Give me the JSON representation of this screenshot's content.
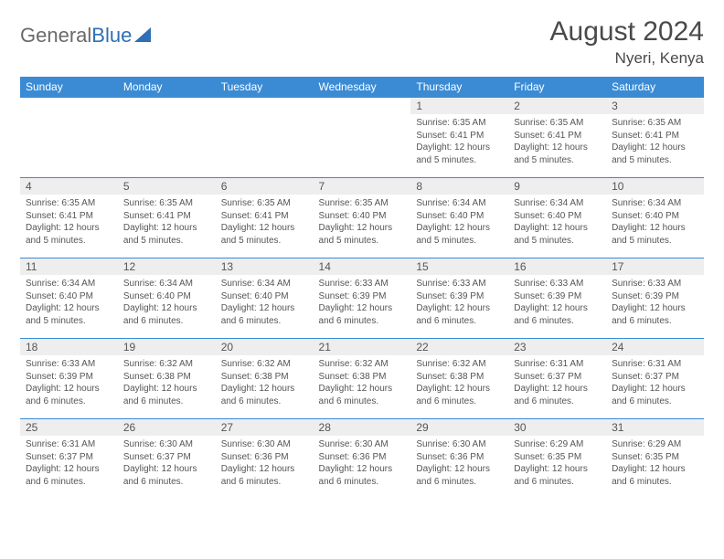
{
  "brand": {
    "word1": "General",
    "word2": "Blue"
  },
  "header": {
    "title": "August 2024",
    "location": "Nyeri, Kenya"
  },
  "colors": {
    "header_bg": "#3b8bd4",
    "header_text": "#ffffff",
    "daynum_bg": "#eeeeee",
    "cell_border": "#3b8bd4",
    "body_text": "#555555",
    "logo_grey": "#6a6a6a",
    "logo_blue": "#2e6fb5"
  },
  "weekdays": [
    "Sunday",
    "Monday",
    "Tuesday",
    "Wednesday",
    "Thursday",
    "Friday",
    "Saturday"
  ],
  "layout": {
    "first_weekday_index": 4,
    "days_in_month": 31,
    "cols": 7,
    "rows": 5
  },
  "days": {
    "1": {
      "sunrise": "6:35 AM",
      "sunset": "6:41 PM",
      "daylight": "12 hours and 5 minutes."
    },
    "2": {
      "sunrise": "6:35 AM",
      "sunset": "6:41 PM",
      "daylight": "12 hours and 5 minutes."
    },
    "3": {
      "sunrise": "6:35 AM",
      "sunset": "6:41 PM",
      "daylight": "12 hours and 5 minutes."
    },
    "4": {
      "sunrise": "6:35 AM",
      "sunset": "6:41 PM",
      "daylight": "12 hours and 5 minutes."
    },
    "5": {
      "sunrise": "6:35 AM",
      "sunset": "6:41 PM",
      "daylight": "12 hours and 5 minutes."
    },
    "6": {
      "sunrise": "6:35 AM",
      "sunset": "6:41 PM",
      "daylight": "12 hours and 5 minutes."
    },
    "7": {
      "sunrise": "6:35 AM",
      "sunset": "6:40 PM",
      "daylight": "12 hours and 5 minutes."
    },
    "8": {
      "sunrise": "6:34 AM",
      "sunset": "6:40 PM",
      "daylight": "12 hours and 5 minutes."
    },
    "9": {
      "sunrise": "6:34 AM",
      "sunset": "6:40 PM",
      "daylight": "12 hours and 5 minutes."
    },
    "10": {
      "sunrise": "6:34 AM",
      "sunset": "6:40 PM",
      "daylight": "12 hours and 5 minutes."
    },
    "11": {
      "sunrise": "6:34 AM",
      "sunset": "6:40 PM",
      "daylight": "12 hours and 5 minutes."
    },
    "12": {
      "sunrise": "6:34 AM",
      "sunset": "6:40 PM",
      "daylight": "12 hours and 6 minutes."
    },
    "13": {
      "sunrise": "6:34 AM",
      "sunset": "6:40 PM",
      "daylight": "12 hours and 6 minutes."
    },
    "14": {
      "sunrise": "6:33 AM",
      "sunset": "6:39 PM",
      "daylight": "12 hours and 6 minutes."
    },
    "15": {
      "sunrise": "6:33 AM",
      "sunset": "6:39 PM",
      "daylight": "12 hours and 6 minutes."
    },
    "16": {
      "sunrise": "6:33 AM",
      "sunset": "6:39 PM",
      "daylight": "12 hours and 6 minutes."
    },
    "17": {
      "sunrise": "6:33 AM",
      "sunset": "6:39 PM",
      "daylight": "12 hours and 6 minutes."
    },
    "18": {
      "sunrise": "6:33 AM",
      "sunset": "6:39 PM",
      "daylight": "12 hours and 6 minutes."
    },
    "19": {
      "sunrise": "6:32 AM",
      "sunset": "6:38 PM",
      "daylight": "12 hours and 6 minutes."
    },
    "20": {
      "sunrise": "6:32 AM",
      "sunset": "6:38 PM",
      "daylight": "12 hours and 6 minutes."
    },
    "21": {
      "sunrise": "6:32 AM",
      "sunset": "6:38 PM",
      "daylight": "12 hours and 6 minutes."
    },
    "22": {
      "sunrise": "6:32 AM",
      "sunset": "6:38 PM",
      "daylight": "12 hours and 6 minutes."
    },
    "23": {
      "sunrise": "6:31 AM",
      "sunset": "6:37 PM",
      "daylight": "12 hours and 6 minutes."
    },
    "24": {
      "sunrise": "6:31 AM",
      "sunset": "6:37 PM",
      "daylight": "12 hours and 6 minutes."
    },
    "25": {
      "sunrise": "6:31 AM",
      "sunset": "6:37 PM",
      "daylight": "12 hours and 6 minutes."
    },
    "26": {
      "sunrise": "6:30 AM",
      "sunset": "6:37 PM",
      "daylight": "12 hours and 6 minutes."
    },
    "27": {
      "sunrise": "6:30 AM",
      "sunset": "6:36 PM",
      "daylight": "12 hours and 6 minutes."
    },
    "28": {
      "sunrise": "6:30 AM",
      "sunset": "6:36 PM",
      "daylight": "12 hours and 6 minutes."
    },
    "29": {
      "sunrise": "6:30 AM",
      "sunset": "6:36 PM",
      "daylight": "12 hours and 6 minutes."
    },
    "30": {
      "sunrise": "6:29 AM",
      "sunset": "6:35 PM",
      "daylight": "12 hours and 6 minutes."
    },
    "31": {
      "sunrise": "6:29 AM",
      "sunset": "6:35 PM",
      "daylight": "12 hours and 6 minutes."
    }
  },
  "labels": {
    "sunrise": "Sunrise:",
    "sunset": "Sunset:",
    "daylight": "Daylight:"
  }
}
